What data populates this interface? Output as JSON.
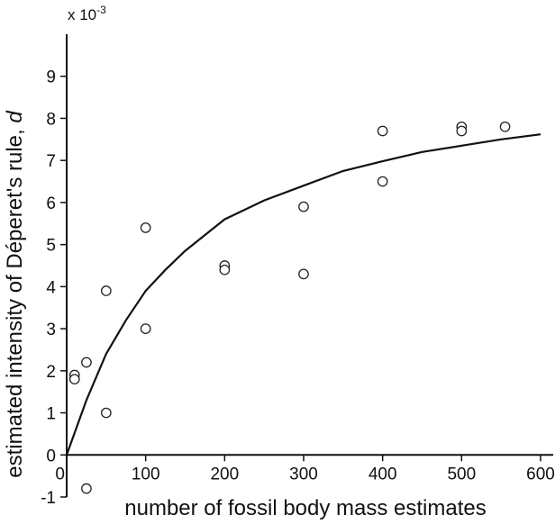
{
  "chart_data": {
    "type": "scatter",
    "xlabel": "number of fossil body mass estimates",
    "ylabel_prefix": "estimated intensity of Déperet's rule, ",
    "ylabel_symbol": "d",
    "y_multiplier_base": "x 10",
    "y_multiplier_exp": "-3",
    "xlim": [
      0,
      600
    ],
    "ylim": [
      -1,
      10
    ],
    "x_ticks": [
      "0",
      "100",
      "200",
      "300",
      "400",
      "500",
      "600"
    ],
    "y_ticks": [
      "-1",
      "0",
      "1",
      "2",
      "3",
      "4",
      "5",
      "6",
      "7",
      "8",
      "9"
    ],
    "grid": false,
    "points": [
      {
        "x": 10,
        "y": 1.9
      },
      {
        "x": 10,
        "y": 1.8
      },
      {
        "x": 25,
        "y": 2.2
      },
      {
        "x": 25,
        "y": -0.8
      },
      {
        "x": 50,
        "y": 3.9
      },
      {
        "x": 50,
        "y": 1.0
      },
      {
        "x": 100,
        "y": 5.4
      },
      {
        "x": 100,
        "y": 3.0
      },
      {
        "x": 200,
        "y": 4.5
      },
      {
        "x": 200,
        "y": 4.4
      },
      {
        "x": 300,
        "y": 5.9
      },
      {
        "x": 300,
        "y": 4.3
      },
      {
        "x": 400,
        "y": 7.7
      },
      {
        "x": 400,
        "y": 6.5
      },
      {
        "x": 500,
        "y": 7.8
      },
      {
        "x": 500,
        "y": 7.7
      },
      {
        "x": 555,
        "y": 7.8
      }
    ],
    "fit_curve": {
      "x": [
        0,
        25,
        50,
        75,
        100,
        125,
        150,
        200,
        250,
        300,
        350,
        400,
        450,
        500,
        550,
        600
      ],
      "y": [
        0.0,
        1.3,
        2.4,
        3.2,
        3.9,
        4.4,
        4.85,
        5.6,
        6.05,
        6.4,
        6.75,
        6.98,
        7.2,
        7.35,
        7.5,
        7.62
      ]
    }
  }
}
